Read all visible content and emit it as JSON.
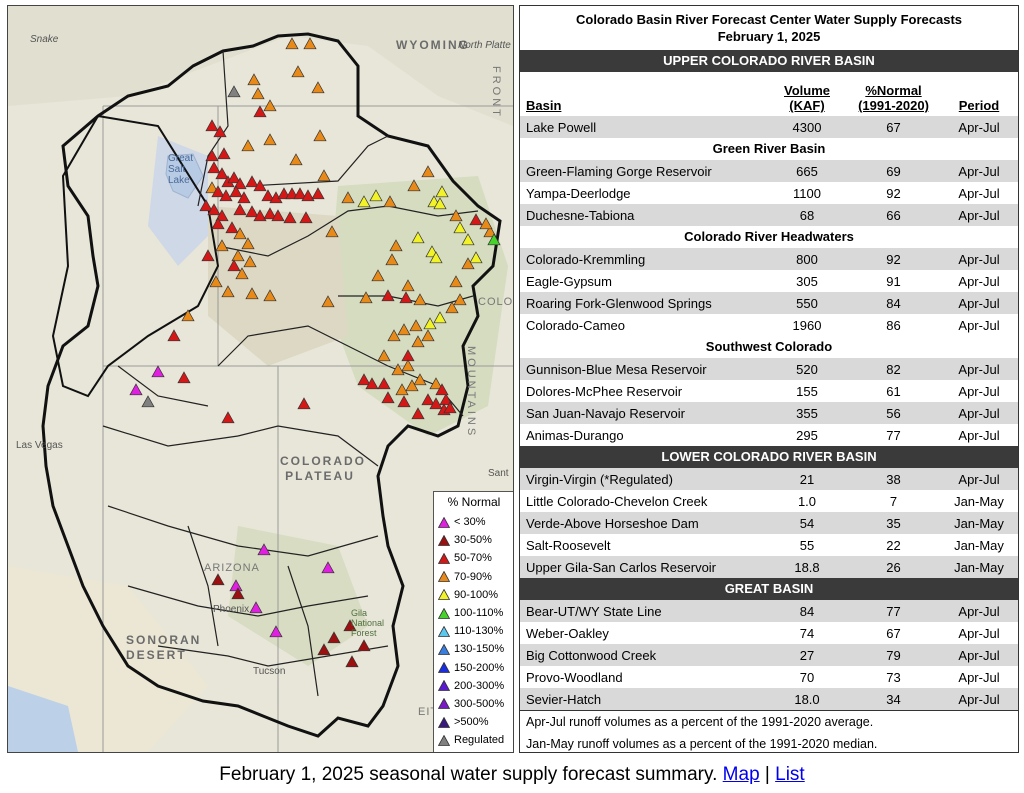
{
  "map": {
    "labels": {
      "wyoming": "WYOMING",
      "north_platte": "North Platte",
      "snake": "Snake",
      "great_salt_lake": "Great Salt Lake",
      "colorado_plateau": "COLORADO PLATEAU",
      "sonoran_desert": "SONORAN DESERT",
      "arizona": "ARIZONA",
      "phoenix": "Phoenix",
      "las_vegas": "Las Vegas",
      "tucson": "Tucson",
      "gila": "Gila National Forest",
      "front_range": "FRONT",
      "colo": "COLOR",
      "mountains": "MOUNTAINS",
      "sant": "Sant",
      "eit": "EIT"
    },
    "colors": {
      "lt30": "#e020e0",
      "p30_50": "#9b1010",
      "p50_70": "#d41818",
      "p70_90": "#e88a1a",
      "p90_100": "#f2f228",
      "p100_110": "#46d32a",
      "regulated": "#808080"
    }
  },
  "legend": {
    "title": "% Normal",
    "items": [
      {
        "label": "< 30%",
        "color": "#e020e0"
      },
      {
        "label": "30-50%",
        "color": "#9b1010"
      },
      {
        "label": "50-70%",
        "color": "#d41818"
      },
      {
        "label": "70-90%",
        "color": "#e88a1a"
      },
      {
        "label": "90-100%",
        "color": "#f2f228"
      },
      {
        "label": "100-110%",
        "color": "#46d32a"
      },
      {
        "label": "110-130%",
        "color": "#5cc8f0"
      },
      {
        "label": "130-150%",
        "color": "#3a7de0"
      },
      {
        "label": "150-200%",
        "color": "#1a2ee0"
      },
      {
        "label": "200-300%",
        "color": "#5a1ad0"
      },
      {
        "label": "300-500%",
        "color": "#7a18c8"
      },
      {
        "label": ">500%",
        "color": "#3a1880"
      },
      {
        "label": "Regulated",
        "color": "#808080"
      }
    ]
  },
  "table": {
    "title_line1": "Colorado Basin River Forecast Center Water Supply Forecasts",
    "title_line2": "February 1, 2025",
    "upper_header": "UPPER COLORADO RIVER BASIN",
    "columns": {
      "basin": "Basin",
      "volume_1": "Volume",
      "volume_2": "(KAF)",
      "pct_1": "%Normal",
      "pct_2": "(1991-2020)",
      "period": "Period"
    },
    "lake_powell": {
      "basin": "Lake Powell",
      "volume": "4300",
      "pct": "67",
      "period": "Apr-Jul"
    },
    "green_header": "Green River Basin",
    "green": [
      {
        "basin": "Green-Flaming Gorge Reservoir",
        "volume": "665",
        "pct": "69",
        "period": "Apr-Jul"
      },
      {
        "basin": "Yampa-Deerlodge",
        "volume": "1100",
        "pct": "92",
        "period": "Apr-Jul"
      },
      {
        "basin": "Duchesne-Tabiona",
        "volume": "68",
        "pct": "66",
        "period": "Apr-Jul"
      }
    ],
    "headwaters_header": "Colorado River Headwaters",
    "headwaters": [
      {
        "basin": "Colorado-Kremmling",
        "volume": "800",
        "pct": "92",
        "period": "Apr-Jul"
      },
      {
        "basin": "Eagle-Gypsum",
        "volume": "305",
        "pct": "91",
        "period": "Apr-Jul"
      },
      {
        "basin": "Roaring Fork-Glenwood Springs",
        "volume": "550",
        "pct": "84",
        "period": "Apr-Jul"
      },
      {
        "basin": "Colorado-Cameo",
        "volume": "1960",
        "pct": "86",
        "period": "Apr-Jul"
      }
    ],
    "southwest_header": "Southwest Colorado",
    "southwest": [
      {
        "basin": "Gunnison-Blue Mesa Reservoir",
        "volume": "520",
        "pct": "82",
        "period": "Apr-Jul"
      },
      {
        "basin": "Dolores-McPhee Reservoir",
        "volume": "155",
        "pct": "61",
        "period": "Apr-Jul"
      },
      {
        "basin": "San Juan-Navajo Reservoir",
        "volume": "355",
        "pct": "56",
        "period": "Apr-Jul"
      },
      {
        "basin": "Animas-Durango",
        "volume": "295",
        "pct": "77",
        "period": "Apr-Jul"
      }
    ],
    "lower_header": "LOWER COLORADO RIVER BASIN",
    "lower": [
      {
        "basin": "Virgin-Virgin (*Regulated)",
        "volume": "21",
        "pct": "38",
        "period": "Apr-Jul"
      },
      {
        "basin": "Little Colorado-Chevelon Creek",
        "volume": "1.0",
        "pct": "7",
        "period": "Jan-May"
      },
      {
        "basin": "Verde-Above Horseshoe Dam",
        "volume": "54",
        "pct": "35",
        "period": "Jan-May"
      },
      {
        "basin": "Salt-Roosevelt",
        "volume": "55",
        "pct": "22",
        "period": "Jan-May"
      },
      {
        "basin": "Upper Gila-San Carlos Reservoir",
        "volume": "18.8",
        "pct": "26",
        "period": "Jan-May"
      }
    ],
    "great_header": "GREAT BASIN",
    "great": [
      {
        "basin": "Bear-UT/WY State Line",
        "volume": "84",
        "pct": "77",
        "period": "Apr-Jul"
      },
      {
        "basin": "Weber-Oakley",
        "volume": "74",
        "pct": "67",
        "period": "Apr-Jul"
      },
      {
        "basin": "Big Cottonwood Creek",
        "volume": "27",
        "pct": "79",
        "period": "Apr-Jul"
      },
      {
        "basin": "Provo-Woodland",
        "volume": "70",
        "pct": "73",
        "period": "Apr-Jul"
      },
      {
        "basin": "Sevier-Hatch",
        "volume": "18.0",
        "pct": "34",
        "period": "Apr-Jul"
      }
    ],
    "note1": "Apr-Jul runoff volumes as a percent of the 1991-2020 average.",
    "note2": "Jan-May runoff volumes as a percent of the 1991-2020 median."
  },
  "caption": {
    "text": "February 1, 2025 seasonal water supply forecast summary.",
    "map_link": "Map",
    "separator": "|",
    "list_link": "List"
  }
}
